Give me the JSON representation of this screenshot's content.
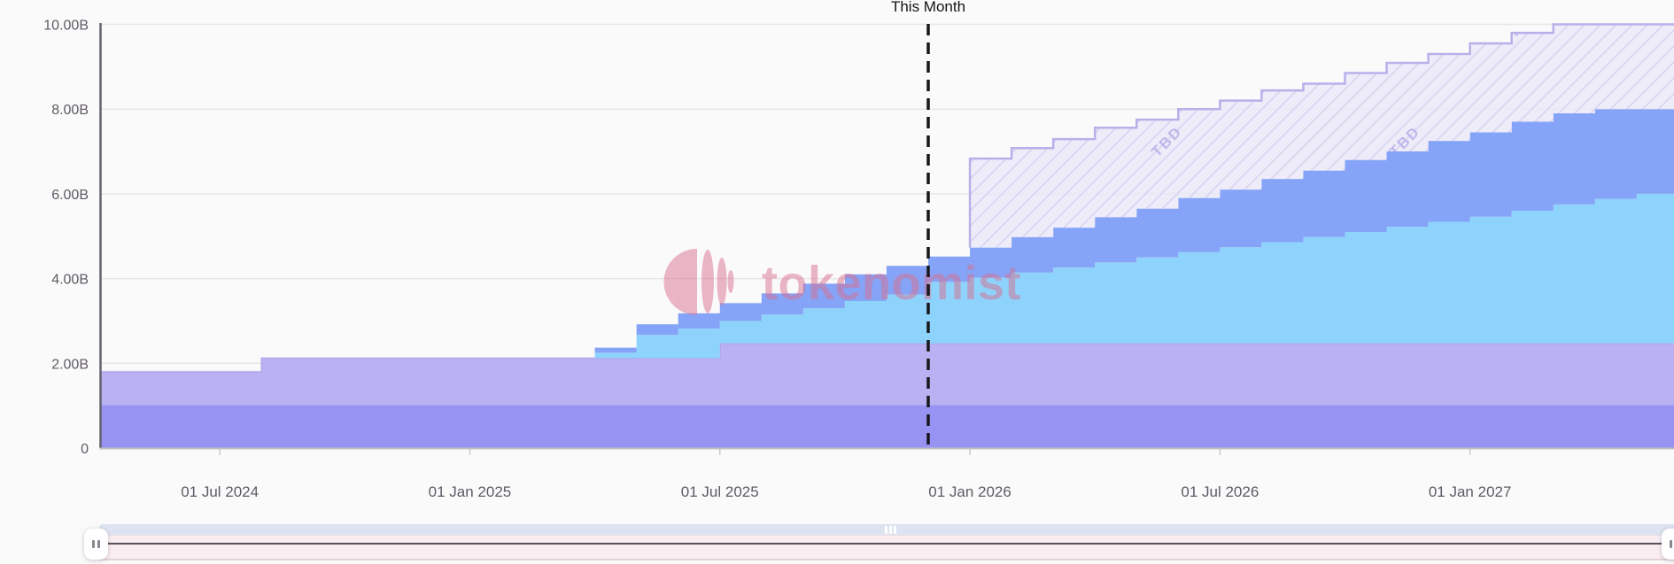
{
  "annotation": {
    "this_month_label": "This Month"
  },
  "watermark": {
    "brand_text": "tokenomist"
  },
  "y_axis": {
    "unit": "B",
    "ticks": [
      {
        "value": 0,
        "label": "0"
      },
      {
        "value": 2,
        "label": "2.00B"
      },
      {
        "value": 4,
        "label": "4.00B"
      },
      {
        "value": 6,
        "label": "6.00B"
      },
      {
        "value": 8,
        "label": "8.00B"
      },
      {
        "value": 10,
        "label": "10.00B"
      }
    ]
  },
  "x_axis": {
    "ticks": [
      {
        "month_index": 3,
        "label": "01 Jul 2024"
      },
      {
        "month_index": 9,
        "label": "01 Jan 2025"
      },
      {
        "month_index": 15,
        "label": "01 Jul 2025"
      },
      {
        "month_index": 21,
        "label": "01 Jan 2026"
      },
      {
        "month_index": 27,
        "label": "01 Jul 2026"
      },
      {
        "month_index": 33,
        "label": "01 Jan 2027"
      }
    ]
  },
  "colors": {
    "background": "#fbfafa",
    "grid_line": "#e9e5e6",
    "y_axis_line": "#62626e",
    "x_axis_line": "#c0bcbe",
    "tick_label": "#5e5a64",
    "now_line": "#18181c",
    "tbd_fill": "rgba(235,233,249,0.8)",
    "tbd_hatch_line": "#d7d3f1",
    "tbd_border": "#b7b1ea",
    "tbd_text": "#beb7ea",
    "watermark_pink": "#d97090",
    "series2_edge": "#a8a0e8",
    "nav_track": "#dde3f1",
    "nav_body": "#f9edf2",
    "nav_line": "#56515b"
  },
  "chart_data": {
    "type": "area",
    "variant": "stacked-step-area",
    "title": "",
    "xlabel": "",
    "ylabel": "",
    "ylim": [
      0,
      10
    ],
    "y_unit": "B",
    "grid": "horizontal",
    "legend_position": "none",
    "tbd_label": "TBD",
    "now_line": {
      "x_index": 20,
      "label": "This Month",
      "x_month": "Dec 2025"
    },
    "x": [
      "Apr 2024",
      "May 2024",
      "Jun 2024",
      "Jul 2024",
      "Aug 2024",
      "Sep 2024",
      "Oct 2024",
      "Nov 2024",
      "Dec 2024",
      "Jan 2025",
      "Feb 2025",
      "Mar 2025",
      "Apr 2025",
      "May 2025",
      "Jun 2025",
      "Jul 2025",
      "Aug 2025",
      "Sep 2025",
      "Oct 2025",
      "Nov 2025",
      "Dec 2025",
      "Jan 2026",
      "Feb 2026",
      "Mar 2026",
      "Apr 2026",
      "May 2026",
      "Jun 2026",
      "Jul 2026",
      "Aug 2026",
      "Sep 2026",
      "Oct 2026",
      "Nov 2026",
      "Dec 2026",
      "Jan 2027",
      "Feb 2027",
      "Mar 2027",
      "Apr 2027",
      "May 2027"
    ],
    "series": [
      {
        "name": "unlocked-allocation-1",
        "color": "#9693f3",
        "values": [
          1.02,
          1.02,
          1.02,
          1.02,
          1.02,
          1.02,
          1.02,
          1.02,
          1.02,
          1.02,
          1.02,
          1.02,
          1.02,
          1.02,
          1.02,
          1.02,
          1.02,
          1.02,
          1.02,
          1.02,
          1.02,
          1.02,
          1.02,
          1.02,
          1.02,
          1.02,
          1.02,
          1.02,
          1.02,
          1.02,
          1.02,
          1.02,
          1.02,
          1.02,
          1.02,
          1.02,
          1.02,
          1.02
        ]
      },
      {
        "name": "unlocked-allocation-2",
        "color": "#b9b1f1",
        "values": [
          0.78,
          0.78,
          0.78,
          0.78,
          1.1,
          1.1,
          1.1,
          1.1,
          1.1,
          1.1,
          1.1,
          1.1,
          1.1,
          1.1,
          1.1,
          1.45,
          1.45,
          1.45,
          1.45,
          1.45,
          1.45,
          1.45,
          1.45,
          1.45,
          1.45,
          1.45,
          1.45,
          1.45,
          1.45,
          1.45,
          1.45,
          1.45,
          1.45,
          1.45,
          1.45,
          1.45,
          1.45,
          1.45
        ]
      },
      {
        "name": "unlocked-allocation-3",
        "color": "#8ed3fc",
        "values": [
          0,
          0,
          0,
          0,
          0,
          0,
          0,
          0,
          0,
          0,
          0,
          0,
          0.13,
          0.55,
          0.7,
          0.53,
          0.68,
          0.83,
          1.0,
          1.15,
          1.45,
          1.55,
          1.67,
          1.79,
          1.91,
          2.03,
          2.15,
          2.27,
          2.39,
          2.51,
          2.63,
          2.75,
          2.87,
          2.99,
          3.13,
          3.28,
          3.41,
          3.53
        ]
      },
      {
        "name": "unlocked-allocation-4",
        "color": "#85a4f7",
        "values": [
          0,
          0,
          0,
          0,
          0,
          0,
          0,
          0,
          0,
          0,
          0,
          0,
          0.12,
          0.25,
          0.36,
          0.42,
          0.5,
          0.58,
          0.63,
          0.68,
          0.6,
          0.71,
          0.84,
          0.94,
          1.07,
          1.15,
          1.28,
          1.36,
          1.49,
          1.57,
          1.7,
          1.78,
          1.91,
          1.99,
          2.1,
          2.15,
          2.12,
          2.0
        ]
      },
      {
        "name": "tbd-future-unlocks",
        "color": "#ebe9f9",
        "hatched": true,
        "label": "TBD",
        "values": [
          0,
          0,
          0,
          0,
          0,
          0,
          0,
          0,
          0,
          0,
          0,
          0,
          0,
          0,
          0,
          0,
          0,
          0,
          0,
          0,
          0,
          2.1,
          2.1,
          2.09,
          2.11,
          2.1,
          2.1,
          2.1,
          2.09,
          2.05,
          2.05,
          2.09,
          2.05,
          2.1,
          2.1,
          2.1,
          2.0,
          2.0
        ]
      }
    ]
  },
  "navigator": {
    "type": "range-scrollbar",
    "range_start": "Apr 2024",
    "range_end": "May 2027"
  }
}
